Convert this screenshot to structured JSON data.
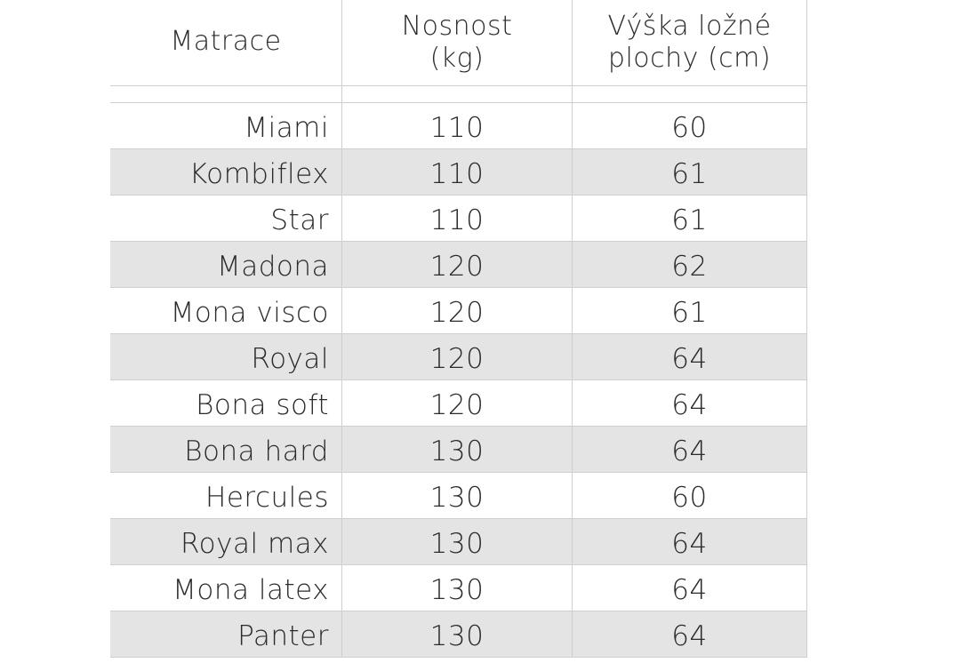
{
  "table": {
    "headers": {
      "name": "Matrace",
      "capacity_line1": "Nosnost",
      "capacity_line2": "(kg)",
      "height_line1": "Výška ložné",
      "height_line2": "plochy (cm)"
    },
    "rows": [
      {
        "name": "Miami",
        "capacity": "110",
        "height": "60"
      },
      {
        "name": "Kombiflex",
        "capacity": "110",
        "height": "61"
      },
      {
        "name": "Star",
        "capacity": "110",
        "height": "61"
      },
      {
        "name": "Madona",
        "capacity": "120",
        "height": "62"
      },
      {
        "name": "Mona visco",
        "capacity": "120",
        "height": "61"
      },
      {
        "name": "Royal",
        "capacity": "120",
        "height": "64"
      },
      {
        "name": "Bona soft",
        "capacity": "120",
        "height": "64"
      },
      {
        "name": "Bona hard",
        "capacity": "130",
        "height": "64"
      },
      {
        "name": "Hercules",
        "capacity": "130",
        "height": "60"
      },
      {
        "name": "Royal max",
        "capacity": "130",
        "height": "64"
      },
      {
        "name": "Mona latex",
        "capacity": "130",
        "height": "64"
      },
      {
        "name": "Panter",
        "capacity": "130",
        "height": "64"
      }
    ]
  },
  "colors": {
    "shaded_row": "#e4e4e4",
    "grid": "#cfcfcf",
    "text": "#2b2b2b"
  }
}
